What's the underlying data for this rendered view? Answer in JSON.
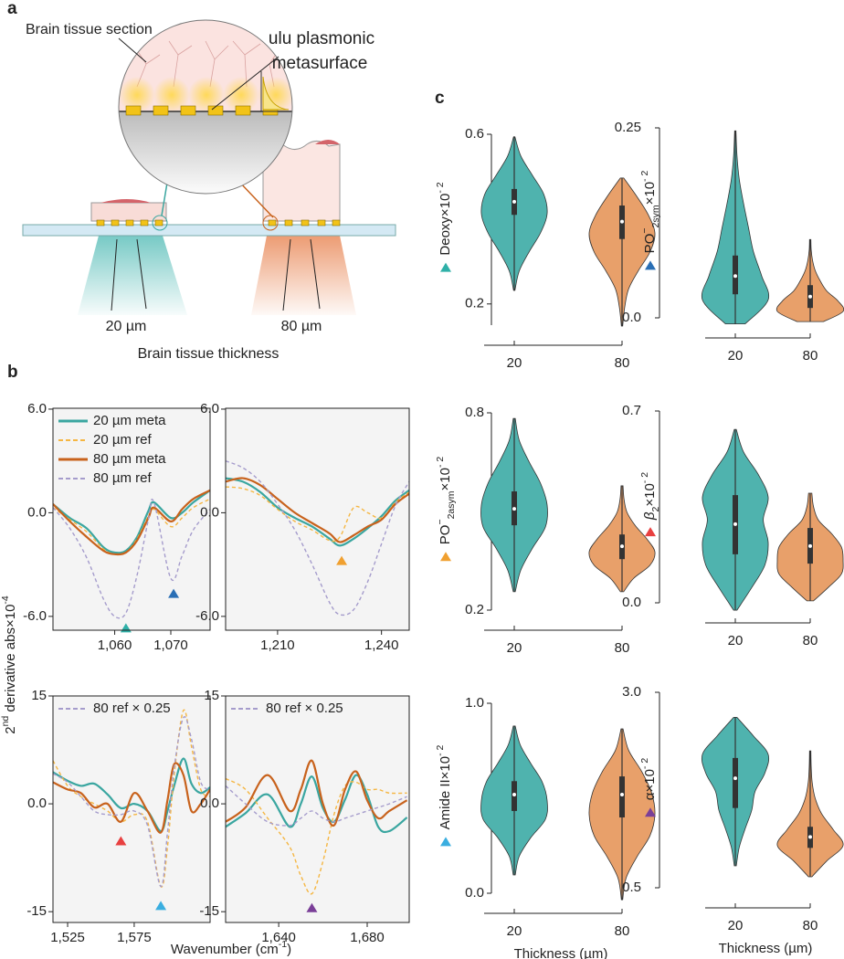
{
  "panel_a": {
    "label": "a",
    "tissue": "Brain tissue section",
    "surface_lines": [
      "ulu plasmonic",
      "metasurface"
    ],
    "thin": "20 µm",
    "thick": "80 µm",
    "caption": "Brain tissue thickness"
  },
  "panel_b": {
    "label": "b",
    "ylabel": [
      {
        "text": "2"
      },
      {
        "text": "nd",
        "shift": "super"
      },
      {
        "text": " derivative abs×10"
      },
      {
        "text": "-4",
        "shift": "super"
      }
    ],
    "xlabel": [
      {
        "text": "Wavenumber (cm"
      },
      {
        "text": "-1",
        "shift": "super"
      },
      {
        "text": ")"
      }
    ]
  },
  "panel_c": {
    "label": "c"
  },
  "chart_data": [
    {
      "type": "line",
      "legend": "upper left",
      "x": [
        1049,
        1052,
        1055,
        1058,
        1060,
        1062,
        1064,
        1066,
        1067,
        1070,
        1072,
        1074,
        1077
      ],
      "xlim": [
        1049,
        1077
      ],
      "ylim": [
        -6.8,
        6.05
      ],
      "xticks": [
        {
          "value": 1060,
          "label": "1,060"
        },
        {
          "value": 1070,
          "label": "1,070"
        }
      ],
      "yticks": [
        {
          "value": 6,
          "label": "6.0"
        },
        {
          "value": 0,
          "label": "0.0"
        },
        {
          "value": -6,
          "label": "-6.0"
        }
      ],
      "series": [
        {
          "name": "20 µm meta",
          "color": "#3aa6a0",
          "dash": false,
          "values": [
            0.5,
            -0.3,
            -0.9,
            -2.0,
            -2.3,
            -2.2,
            -1.4,
            0.1,
            0.6,
            -0.3,
            0.0,
            0.6,
            1.3
          ]
        },
        {
          "name": "20 µm ref",
          "color": "#f5b642",
          "dash": true,
          "values": [
            0.3,
            -0.4,
            -1.1,
            -2.1,
            -2.4,
            -2.3,
            -1.5,
            -0.2,
            0.2,
            -0.8,
            -0.3,
            0.3,
            0.8
          ]
        },
        {
          "name": "80 µm meta",
          "color": "#c8621c",
          "dash": false,
          "values": [
            0.5,
            -0.5,
            -1.4,
            -2.2,
            -2.4,
            -2.3,
            -1.6,
            -0.3,
            0.3,
            -0.5,
            0.2,
            0.8,
            1.3
          ]
        },
        {
          "name": "80 µm ref",
          "color": "#a59ccc",
          "dash": true,
          "values": [
            0.3,
            -0.9,
            -2.6,
            -5.0,
            -6.0,
            -5.8,
            -3.6,
            -0.4,
            0.6,
            -3.8,
            -2.5,
            -1.0,
            0.2
          ]
        }
      ],
      "markers": [
        {
          "x": 1062,
          "y": -6.4,
          "color": "#2fb0a8"
        },
        {
          "x": 1070.5,
          "y": -4.4,
          "color": "#2a6fb5"
        }
      ]
    },
    {
      "type": "line",
      "x": [
        1195,
        1200,
        1205,
        1210,
        1215,
        1220,
        1225,
        1228,
        1232,
        1236,
        1240,
        1244,
        1248
      ],
      "xlim": [
        1195,
        1248
      ],
      "ylim": [
        -6.8,
        6.05
      ],
      "xticks": [
        {
          "value": 1210,
          "label": "1,210"
        },
        {
          "value": 1240,
          "label": "1,240"
        }
      ],
      "yticks": [
        {
          "value": 6,
          "label": "6.0"
        },
        {
          "value": 0,
          "label": "0.0"
        },
        {
          "value": -6,
          "label": "-6.0"
        }
      ],
      "series": [
        {
          "color": "#3aa6a0",
          "dash": false,
          "values": [
            2.0,
            1.8,
            1.2,
            0.3,
            -0.3,
            -0.8,
            -1.5,
            -1.9,
            -1.5,
            -0.9,
            -0.2,
            0.7,
            1.3
          ]
        },
        {
          "color": "#f5b642",
          "dash": true,
          "values": [
            1.5,
            1.4,
            1.0,
            0.2,
            -0.5,
            -1.0,
            -1.6,
            -1.4,
            0.3,
            0.0,
            -0.3,
            0.6,
            1.2
          ]
        },
        {
          "color": "#c8621c",
          "dash": false,
          "values": [
            1.8,
            2.0,
            1.6,
            0.8,
            0.0,
            -0.6,
            -1.2,
            -1.7,
            -1.3,
            -0.8,
            -0.4,
            0.5,
            1.1
          ]
        },
        {
          "color": "#a59ccc",
          "dash": true,
          "values": [
            3.0,
            2.6,
            1.8,
            0.5,
            -1.0,
            -3.0,
            -5.2,
            -5.9,
            -5.6,
            -4.0,
            -1.8,
            0.4,
            1.8
          ]
        }
      ],
      "markers": [
        {
          "x": 1228.5,
          "y": -2.5,
          "color": "#f0a030"
        }
      ]
    },
    {
      "type": "line",
      "legend": "upper left",
      "x": [
        1514,
        1525,
        1535,
        1545,
        1555,
        1565,
        1575,
        1585,
        1595,
        1600,
        1605,
        1612,
        1618,
        1625,
        1632
      ],
      "xlim": [
        1514,
        1632
      ],
      "ylim": [
        -16.5,
        15
      ],
      "xticks": [
        {
          "value": 1525,
          "label": "1,525"
        },
        {
          "value": 1575,
          "label": "1,575"
        }
      ],
      "yticks": [
        15,
        {
          "value": 0,
          "label": "0.0"
        },
        -15
      ],
      "series": [
        {
          "color": "#3aa6a0",
          "dash": false,
          "values": [
            4.4,
            3.2,
            2.5,
            2.8,
            1.3,
            -0.6,
            0.0,
            -1.0,
            -3.8,
            -1.0,
            2.5,
            6.3,
            2.8,
            1.5,
            2.3
          ]
        },
        {
          "color": "#f5b642",
          "dash": true,
          "values": [
            6.0,
            2.5,
            1.0,
            0.0,
            -1.0,
            -2.5,
            -1.5,
            -2.5,
            -11.5,
            -6.0,
            4.0,
            13.0,
            8.0,
            2.0,
            1.0
          ]
        },
        {
          "color": "#c8621c",
          "dash": false,
          "values": [
            3.0,
            2.0,
            1.5,
            -0.5,
            0.0,
            -2.5,
            1.5,
            -1.0,
            -4.0,
            0.5,
            5.5,
            4.0,
            -1.0,
            0.0,
            2.0
          ]
        },
        {
          "name": "80 ref × 0.25",
          "color": "#a59ccc",
          "dash": true,
          "values": [
            4.2,
            3.0,
            1.0,
            -1.0,
            -1.5,
            -1.5,
            -1.0,
            -3.0,
            -11.5,
            -4.0,
            5.0,
            12.0,
            9.0,
            3.0,
            2.0
          ]
        }
      ],
      "markers": [
        {
          "x": 1565,
          "y": -4.5,
          "color": "#e84040"
        },
        {
          "x": 1595,
          "y": -13.5,
          "color": "#3aaee0"
        }
      ]
    },
    {
      "type": "line",
      "legend": "upper left",
      "x": [
        1616,
        1625,
        1635,
        1645,
        1650,
        1655,
        1660,
        1665,
        1670,
        1675,
        1680,
        1685,
        1690,
        1698
      ],
      "xlim": [
        1616,
        1699
      ],
      "ylim": [
        -16.5,
        15
      ],
      "xticks": [
        {
          "value": 1640,
          "label": "1,640"
        },
        {
          "value": 1680,
          "label": "1,680"
        }
      ],
      "yticks": [
        15,
        {
          "value": 0,
          "label": "0.0"
        },
        -15
      ],
      "series": [
        {
          "color": "#3aa6a0",
          "dash": false,
          "values": [
            -3.2,
            -1.3,
            1.3,
            -3.2,
            0.0,
            3.8,
            -0.6,
            -2.5,
            0.6,
            4.0,
            1.3,
            -3.2,
            -3.8,
            -1.9
          ]
        },
        {
          "color": "#f5b642",
          "dash": true,
          "values": [
            3.5,
            2.0,
            -2.0,
            -6.0,
            -10.0,
            -12.5,
            -8.0,
            -1.5,
            2.5,
            3.0,
            2.0,
            2.0,
            1.5,
            1.5
          ]
        },
        {
          "color": "#c8621c",
          "dash": false,
          "values": [
            -2.5,
            -0.5,
            4.0,
            -1.0,
            2.0,
            6.0,
            0.0,
            -3.0,
            2.0,
            4.5,
            0.5,
            -2.0,
            -1.0,
            0.5
          ]
        },
        {
          "name": "80 ref × 0.25",
          "color": "#a59ccc",
          "dash": true,
          "values": [
            2.5,
            0.0,
            -2.5,
            -3.0,
            -2.0,
            -1.0,
            -2.0,
            -2.5,
            -2.0,
            -1.5,
            -1.0,
            -0.5,
            0.0,
            1.0
          ]
        }
      ],
      "markers": [
        {
          "x": 1655,
          "y": -13.8,
          "color": "#7a3f98"
        }
      ]
    },
    {
      "type": "violin",
      "ylabel": [
        {
          "text": "Deoxy×10"
        },
        {
          "text": "- 2",
          "shift": "super"
        }
      ],
      "marker_color": "#2fb0a8",
      "categories": [
        "20",
        "80"
      ],
      "ylim": [
        0.15,
        0.6
      ],
      "yticks": [
        0.2,
        0.6
      ],
      "violins": [
        {
          "color": "#4fb3ae",
          "min": 0.232,
          "q1": 0.41,
          "median": 0.441,
          "q3": 0.471,
          "max": 0.594,
          "density": [
            0.02,
            0.15,
            0.45,
            0.8,
            1.0,
            0.9,
            0.55,
            0.2,
            0.02
          ]
        },
        {
          "color": "#e8a06a",
          "min": 0.148,
          "q1": 0.353,
          "median": 0.394,
          "q3": 0.432,
          "max": 0.497,
          "density": [
            0.02,
            0.08,
            0.2,
            0.5,
            0.85,
            1.0,
            0.8,
            0.45,
            0.05
          ]
        }
      ]
    },
    {
      "type": "violin",
      "ylabel": [
        {
          "text": "PO"
        },
        {
          "text": "−",
          "shift": "super"
        },
        {
          "text": "2sym",
          "shift": "sub"
        },
        {
          "text": "×10"
        },
        {
          "text": "- 2",
          "shift": "super"
        }
      ],
      "marker_color": "#2a6fb5",
      "categories": [
        "20",
        "80"
      ],
      "ylim": [
        0,
        0.25
      ],
      "yticks": [
        {
          "value": 0,
          "label": "0.0"
        },
        0.25
      ],
      "violins": [
        {
          "color": "#4fb3ae",
          "min": -0.008,
          "q1": 0.031,
          "median": 0.055,
          "q3": 0.082,
          "max": 0.246,
          "density": [
            0.3,
            1.0,
            0.8,
            0.55,
            0.4,
            0.25,
            0.12,
            0.05,
            0.02
          ]
        },
        {
          "color": "#e8a06a",
          "min": -0.005,
          "q1": 0.013,
          "median": 0.028,
          "q3": 0.043,
          "max": 0.103,
          "density": [
            0.4,
            1.0,
            0.85,
            0.5,
            0.3,
            0.15,
            0.07,
            0.03,
            0.02
          ]
        }
      ]
    },
    {
      "type": "violin",
      "ylabel": [
        {
          "text": "PO"
        },
        {
          "text": "−",
          "shift": "super"
        },
        {
          "text": "2asym",
          "shift": "sub"
        },
        {
          "text": "×10"
        },
        {
          "text": "- 2",
          "shift": "super"
        }
      ],
      "marker_color": "#f0a030",
      "categories": [
        "20",
        "80"
      ],
      "ylim": [
        0.2,
        0.8
      ],
      "yticks": [
        0.2,
        0.8
      ],
      "violins": [
        {
          "color": "#4fb3ae",
          "min": 0.256,
          "q1": 0.458,
          "median": 0.508,
          "q3": 0.561,
          "max": 0.783,
          "density": [
            0.03,
            0.2,
            0.55,
            0.95,
            1.0,
            0.8,
            0.45,
            0.15,
            0.03
          ]
        },
        {
          "color": "#e8a06a",
          "min": 0.256,
          "q1": 0.355,
          "median": 0.394,
          "q3": 0.43,
          "max": 0.578,
          "density": [
            0.05,
            0.35,
            0.85,
            1.0,
            0.75,
            0.4,
            0.15,
            0.06,
            0.03
          ]
        }
      ]
    },
    {
      "type": "violin",
      "ylabel": [
        {
          "text": "β",
          "style": "italic"
        },
        {
          "text": "2",
          "shift": "sub"
        },
        {
          "text": "×10"
        },
        {
          "text": "- 2",
          "shift": "super"
        }
      ],
      "marker_color": "#e84040",
      "categories": [
        "20",
        "80"
      ],
      "ylim": [
        0,
        0.7
      ],
      "yticks": [
        {
          "value": 0,
          "label": "0.0"
        },
        0.7
      ],
      "violins": [
        {
          "color": "#4fb3ae",
          "min": -0.027,
          "q1": 0.177,
          "median": 0.287,
          "q3": 0.393,
          "max": 0.633,
          "density": [
            0.05,
            0.5,
            0.9,
            1.0,
            0.85,
            1.0,
            0.7,
            0.25,
            0.03
          ]
        },
        {
          "color": "#e8a06a",
          "min": 0.007,
          "q1": 0.143,
          "median": 0.207,
          "q3": 0.273,
          "max": 0.4,
          "density": [
            0.1,
            0.55,
            0.95,
            1.0,
            0.95,
            0.65,
            0.25,
            0.1,
            0.05
          ]
        }
      ]
    },
    {
      "type": "violin",
      "ylabel": [
        {
          "text": "Amide II×10"
        },
        {
          "text": "- 2",
          "shift": "super"
        }
      ],
      "marker_color": "#3aaee0",
      "categories": [
        "20",
        "80"
      ],
      "ylim": [
        0,
        1.0
      ],
      "yticks": [
        {
          "value": 0,
          "label": "0.0"
        },
        {
          "value": 1,
          "label": "1.0"
        }
      ],
      "xlabel": "Thickness (µm)",
      "violins": [
        {
          "color": "#4fb3ae",
          "min": 0.096,
          "q1": 0.433,
          "median": 0.519,
          "q3": 0.59,
          "max": 0.88,
          "density": [
            0.03,
            0.15,
            0.5,
            0.95,
            1.0,
            0.85,
            0.5,
            0.18,
            0.03
          ]
        },
        {
          "color": "#e8a06a",
          "min": -0.034,
          "q1": 0.399,
          "median": 0.519,
          "q3": 0.615,
          "max": 0.865,
          "density": [
            0.02,
            0.12,
            0.45,
            0.85,
            1.0,
            0.9,
            0.6,
            0.2,
            0.03
          ]
        }
      ]
    },
    {
      "type": "violin",
      "ylabel": [
        {
          "text": "α×10"
        },
        {
          "text": "- 2",
          "shift": "super"
        }
      ],
      "marker_color": "#7a3f98",
      "categories": [
        "20",
        "80"
      ],
      "ylim": [
        0.5,
        3.0
      ],
      "yticks": [
        0.5,
        {
          "value": 3,
          "label": "3.0"
        }
      ],
      "xlabel": "Thickness (µm)",
      "violins": [
        {
          "color": "#4fb3ae",
          "min": 0.78,
          "q1": 1.52,
          "median": 1.9,
          "q3": 2.16,
          "max": 2.68,
          "density": [
            0.03,
            0.12,
            0.3,
            0.5,
            0.6,
            0.9,
            1.0,
            0.55,
            0.05
          ]
        },
        {
          "color": "#e8a06a",
          "min": 0.64,
          "q1": 1.01,
          "median": 1.15,
          "q3": 1.28,
          "max": 2.25,
          "density": [
            0.05,
            0.5,
            1.0,
            0.7,
            0.35,
            0.15,
            0.06,
            0.03,
            0.02
          ]
        }
      ]
    }
  ]
}
